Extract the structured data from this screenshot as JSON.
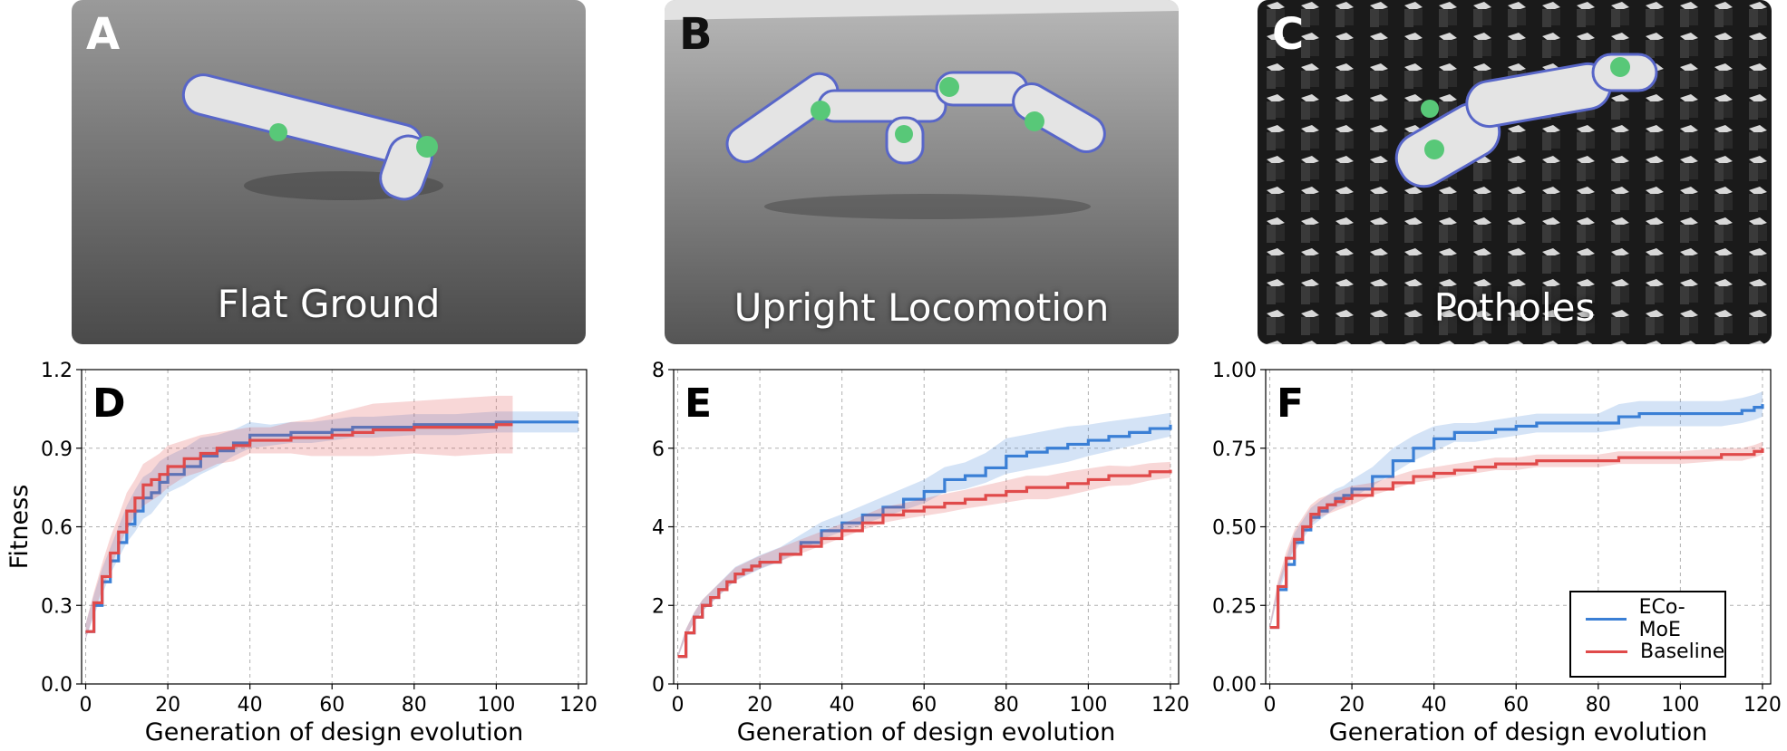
{
  "panels": [
    {
      "letter": "A",
      "caption": "Flat Ground"
    },
    {
      "letter": "B",
      "caption": "Upright Locomotion"
    },
    {
      "letter": "C",
      "caption": "Potholes"
    }
  ],
  "colors": {
    "eco_moe": "#3a7fd5",
    "baseline": "#e04a4a"
  },
  "legend": {
    "items": [
      "ECo-MoE",
      "Baseline"
    ],
    "placement": "lower-right of panel F"
  },
  "chart_data": [
    {
      "panel": "D",
      "type": "line",
      "xlabel": "Generation of design evolution",
      "ylabel": "Fitness",
      "xlim": [
        -1,
        122
      ],
      "ylim": [
        0,
        1.2
      ],
      "xticks": [
        "0",
        "20",
        "40",
        "60",
        "80",
        "100",
        "120"
      ],
      "yticks": [
        "0.0",
        "0.3",
        "0.6",
        "0.9",
        "1.2"
      ],
      "grid": true,
      "series": [
        {
          "name": "ECo-MoE",
          "color": "#3a7fd5",
          "x": [
            0,
            2,
            4,
            6,
            8,
            10,
            12,
            14,
            16,
            18,
            20,
            24,
            28,
            32,
            36,
            40,
            45,
            50,
            55,
            60,
            65,
            70,
            80,
            90,
            100,
            110,
            120
          ],
          "y": [
            0.2,
            0.3,
            0.39,
            0.47,
            0.54,
            0.61,
            0.66,
            0.71,
            0.73,
            0.77,
            0.8,
            0.83,
            0.87,
            0.89,
            0.92,
            0.95,
            0.95,
            0.96,
            0.96,
            0.97,
            0.98,
            0.98,
            0.99,
            0.99,
            1.0,
            1.0,
            1.0
          ],
          "band": [
            0.03,
            0.04,
            0.05,
            0.05,
            0.06,
            0.07,
            0.08,
            0.08,
            0.08,
            0.08,
            0.07,
            0.07,
            0.07,
            0.06,
            0.05,
            0.05,
            0.04,
            0.04,
            0.04,
            0.04,
            0.04,
            0.04,
            0.04,
            0.04,
            0.04,
            0.04,
            0.04
          ]
        },
        {
          "name": "Baseline",
          "color": "#e04a4a",
          "x": [
            0,
            2,
            4,
            6,
            8,
            10,
            12,
            14,
            16,
            18,
            20,
            24,
            28,
            32,
            36,
            40,
            45,
            50,
            55,
            60,
            65,
            70,
            80,
            90,
            100,
            104
          ],
          "y": [
            0.2,
            0.31,
            0.41,
            0.5,
            0.58,
            0.66,
            0.71,
            0.76,
            0.78,
            0.8,
            0.83,
            0.86,
            0.88,
            0.9,
            0.91,
            0.93,
            0.93,
            0.94,
            0.94,
            0.95,
            0.96,
            0.97,
            0.98,
            0.98,
            0.99,
            0.99
          ],
          "band": [
            0.03,
            0.04,
            0.05,
            0.06,
            0.06,
            0.07,
            0.07,
            0.08,
            0.08,
            0.08,
            0.08,
            0.07,
            0.07,
            0.06,
            0.06,
            0.05,
            0.05,
            0.06,
            0.07,
            0.08,
            0.09,
            0.1,
            0.1,
            0.11,
            0.11,
            0.11
          ]
        }
      ]
    },
    {
      "panel": "E",
      "type": "line",
      "xlabel": "Generation of design evolution",
      "ylabel": "",
      "xlim": [
        -1,
        122
      ],
      "ylim": [
        0,
        8
      ],
      "xticks": [
        "0",
        "20",
        "40",
        "60",
        "80",
        "100",
        "120"
      ],
      "yticks": [
        "0",
        "2",
        "4",
        "6",
        "8"
      ],
      "grid": true,
      "series": [
        {
          "name": "ECo-MoE",
          "color": "#3a7fd5",
          "x": [
            0,
            2,
            4,
            6,
            8,
            10,
            12,
            14,
            16,
            18,
            20,
            25,
            30,
            35,
            40,
            45,
            50,
            55,
            60,
            65,
            70,
            75,
            80,
            85,
            90,
            95,
            100,
            105,
            110,
            115,
            120
          ],
          "y": [
            0.7,
            1.3,
            1.7,
            2.0,
            2.2,
            2.4,
            2.6,
            2.8,
            2.9,
            3.0,
            3.1,
            3.3,
            3.6,
            3.9,
            4.1,
            4.3,
            4.5,
            4.7,
            4.9,
            5.2,
            5.3,
            5.5,
            5.8,
            5.9,
            6.0,
            6.1,
            6.2,
            6.3,
            6.4,
            6.5,
            6.6
          ],
          "band": [
            0.05,
            0.1,
            0.12,
            0.14,
            0.15,
            0.16,
            0.17,
            0.18,
            0.18,
            0.18,
            0.18,
            0.18,
            0.2,
            0.22,
            0.22,
            0.24,
            0.26,
            0.28,
            0.3,
            0.32,
            0.34,
            0.38,
            0.45,
            0.45,
            0.45,
            0.45,
            0.4,
            0.38,
            0.35,
            0.32,
            0.3
          ]
        },
        {
          "name": "Baseline",
          "color": "#e04a4a",
          "x": [
            0,
            2,
            4,
            6,
            8,
            10,
            12,
            14,
            16,
            18,
            20,
            25,
            30,
            35,
            40,
            45,
            50,
            55,
            60,
            65,
            70,
            75,
            80,
            85,
            90,
            95,
            100,
            105,
            110,
            115,
            120
          ],
          "y": [
            0.7,
            1.3,
            1.7,
            2.0,
            2.2,
            2.4,
            2.6,
            2.8,
            2.9,
            3.0,
            3.1,
            3.3,
            3.5,
            3.7,
            3.9,
            4.1,
            4.3,
            4.4,
            4.5,
            4.6,
            4.7,
            4.8,
            4.9,
            5.0,
            5.0,
            5.1,
            5.2,
            5.3,
            5.3,
            5.4,
            5.45
          ],
          "band": [
            0.05,
            0.1,
            0.12,
            0.14,
            0.15,
            0.15,
            0.15,
            0.16,
            0.16,
            0.16,
            0.16,
            0.17,
            0.18,
            0.18,
            0.18,
            0.18,
            0.2,
            0.2,
            0.22,
            0.24,
            0.24,
            0.26,
            0.28,
            0.3,
            0.3,
            0.3,
            0.28,
            0.26,
            0.24,
            0.22,
            0.2
          ]
        }
      ]
    },
    {
      "panel": "F",
      "type": "line",
      "xlabel": "Generation of design evolution",
      "ylabel": "",
      "xlim": [
        -1,
        122
      ],
      "ylim": [
        0,
        1.0
      ],
      "xticks": [
        "0",
        "20",
        "40",
        "60",
        "80",
        "100",
        "120"
      ],
      "yticks": [
        "0.00",
        "0.25",
        "0.50",
        "0.75",
        "1.00"
      ],
      "grid": true,
      "series": [
        {
          "name": "ECo-MoE",
          "color": "#3a7fd5",
          "x": [
            0,
            2,
            4,
            6,
            8,
            10,
            12,
            14,
            16,
            18,
            20,
            25,
            30,
            35,
            40,
            45,
            50,
            55,
            60,
            65,
            70,
            80,
            85,
            90,
            95,
            100,
            110,
            115,
            118,
            120
          ],
          "y": [
            0.18,
            0.3,
            0.38,
            0.45,
            0.49,
            0.53,
            0.55,
            0.57,
            0.59,
            0.6,
            0.62,
            0.66,
            0.71,
            0.75,
            0.78,
            0.8,
            0.8,
            0.81,
            0.82,
            0.83,
            0.83,
            0.83,
            0.85,
            0.86,
            0.86,
            0.86,
            0.86,
            0.87,
            0.88,
            0.89
          ],
          "band": [
            0.01,
            0.02,
            0.02,
            0.03,
            0.03,
            0.03,
            0.03,
            0.03,
            0.03,
            0.03,
            0.03,
            0.03,
            0.04,
            0.04,
            0.04,
            0.03,
            0.03,
            0.03,
            0.03,
            0.03,
            0.03,
            0.03,
            0.04,
            0.04,
            0.04,
            0.04,
            0.04,
            0.04,
            0.04,
            0.04
          ]
        },
        {
          "name": "Baseline",
          "color": "#e04a4a",
          "x": [
            0,
            2,
            4,
            6,
            8,
            10,
            12,
            14,
            16,
            18,
            20,
            25,
            30,
            35,
            40,
            45,
            50,
            55,
            60,
            65,
            70,
            80,
            85,
            90,
            95,
            100,
            110,
            115,
            118,
            120
          ],
          "y": [
            0.18,
            0.31,
            0.4,
            0.46,
            0.5,
            0.54,
            0.56,
            0.57,
            0.58,
            0.59,
            0.6,
            0.62,
            0.64,
            0.66,
            0.67,
            0.68,
            0.69,
            0.7,
            0.7,
            0.71,
            0.71,
            0.71,
            0.72,
            0.72,
            0.72,
            0.72,
            0.73,
            0.73,
            0.74,
            0.75
          ],
          "band": [
            0.01,
            0.02,
            0.02,
            0.03,
            0.03,
            0.03,
            0.03,
            0.03,
            0.03,
            0.03,
            0.03,
            0.02,
            0.02,
            0.02,
            0.02,
            0.02,
            0.02,
            0.02,
            0.02,
            0.02,
            0.02,
            0.02,
            0.02,
            0.02,
            0.02,
            0.02,
            0.02,
            0.02,
            0.02,
            0.02
          ]
        }
      ]
    }
  ]
}
